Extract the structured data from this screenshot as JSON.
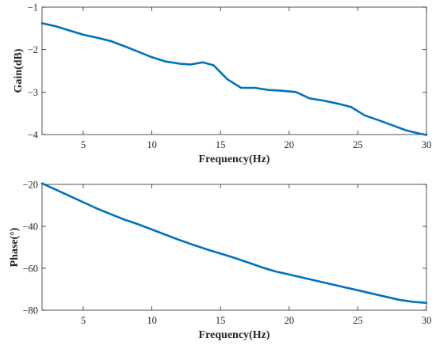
{
  "chart_data": [
    {
      "type": "line",
      "xlabel": "Frequency(Hz)",
      "ylabel": "Gain(dB)",
      "xlim": [
        2,
        30
      ],
      "ylim": [
        -4,
        -1
      ],
      "xticks": [
        5,
        10,
        15,
        20,
        25,
        30
      ],
      "yticks": [
        -4,
        -3,
        -2,
        -1
      ],
      "xtick_labels": [
        "5",
        "10",
        "15",
        "20",
        "25",
        "30"
      ],
      "ytick_labels": [
        "−4",
        "−3",
        "−2",
        "−1"
      ],
      "grid": false,
      "series": [
        {
          "color": "#0072BD",
          "x": [
            2,
            3,
            4,
            5,
            6,
            7,
            8,
            9,
            10,
            11,
            12,
            12.8,
            13.7,
            14.5,
            15.5,
            16.5,
            17.5,
            18.5,
            19.5,
            20.5,
            21.5,
            22.5,
            23.5,
            24.5,
            25.5,
            26.5,
            27.5,
            28.5,
            29.5,
            30
          ],
          "y": [
            -1.38,
            -1.45,
            -1.55,
            -1.65,
            -1.72,
            -1.8,
            -1.92,
            -2.05,
            -2.18,
            -2.28,
            -2.33,
            -2.35,
            -2.3,
            -2.37,
            -2.7,
            -2.9,
            -2.9,
            -2.95,
            -2.97,
            -3.0,
            -3.15,
            -3.2,
            -3.27,
            -3.35,
            -3.55,
            -3.66,
            -3.78,
            -3.9,
            -3.98,
            -4.01
          ]
        }
      ]
    },
    {
      "type": "line",
      "xlabel": "Frequency(Hz)",
      "ylabel": "Phase(°)",
      "xlim": [
        2,
        30
      ],
      "ylim": [
        -80,
        -20
      ],
      "xticks": [
        5,
        10,
        15,
        20,
        25,
        30
      ],
      "yticks": [
        -80,
        -60,
        -40,
        -20
      ],
      "xtick_labels": [
        "5",
        "10",
        "15",
        "20",
        "25",
        "30"
      ],
      "ytick_labels": [
        "−80",
        "−60",
        "−40",
        "−20"
      ],
      "grid": false,
      "series": [
        {
          "color": "#0072BD",
          "x": [
            2,
            3,
            4,
            5,
            6,
            7,
            8,
            9,
            10,
            11,
            12,
            13,
            14,
            15,
            16,
            17,
            18,
            19,
            20,
            21,
            22,
            23,
            24,
            25,
            26,
            27,
            28,
            29,
            30
          ],
          "y": [
            -19.5,
            -22.5,
            -25.5,
            -28.5,
            -31.5,
            -34.2,
            -36.8,
            -39.0,
            -41.5,
            -44.0,
            -46.5,
            -48.8,
            -51.0,
            -53.0,
            -55.0,
            -57.2,
            -59.5,
            -61.5,
            -63.0,
            -64.5,
            -66.0,
            -67.5,
            -69.0,
            -70.5,
            -72.0,
            -73.5,
            -75.0,
            -76.0,
            -76.5
          ]
        }
      ]
    }
  ]
}
